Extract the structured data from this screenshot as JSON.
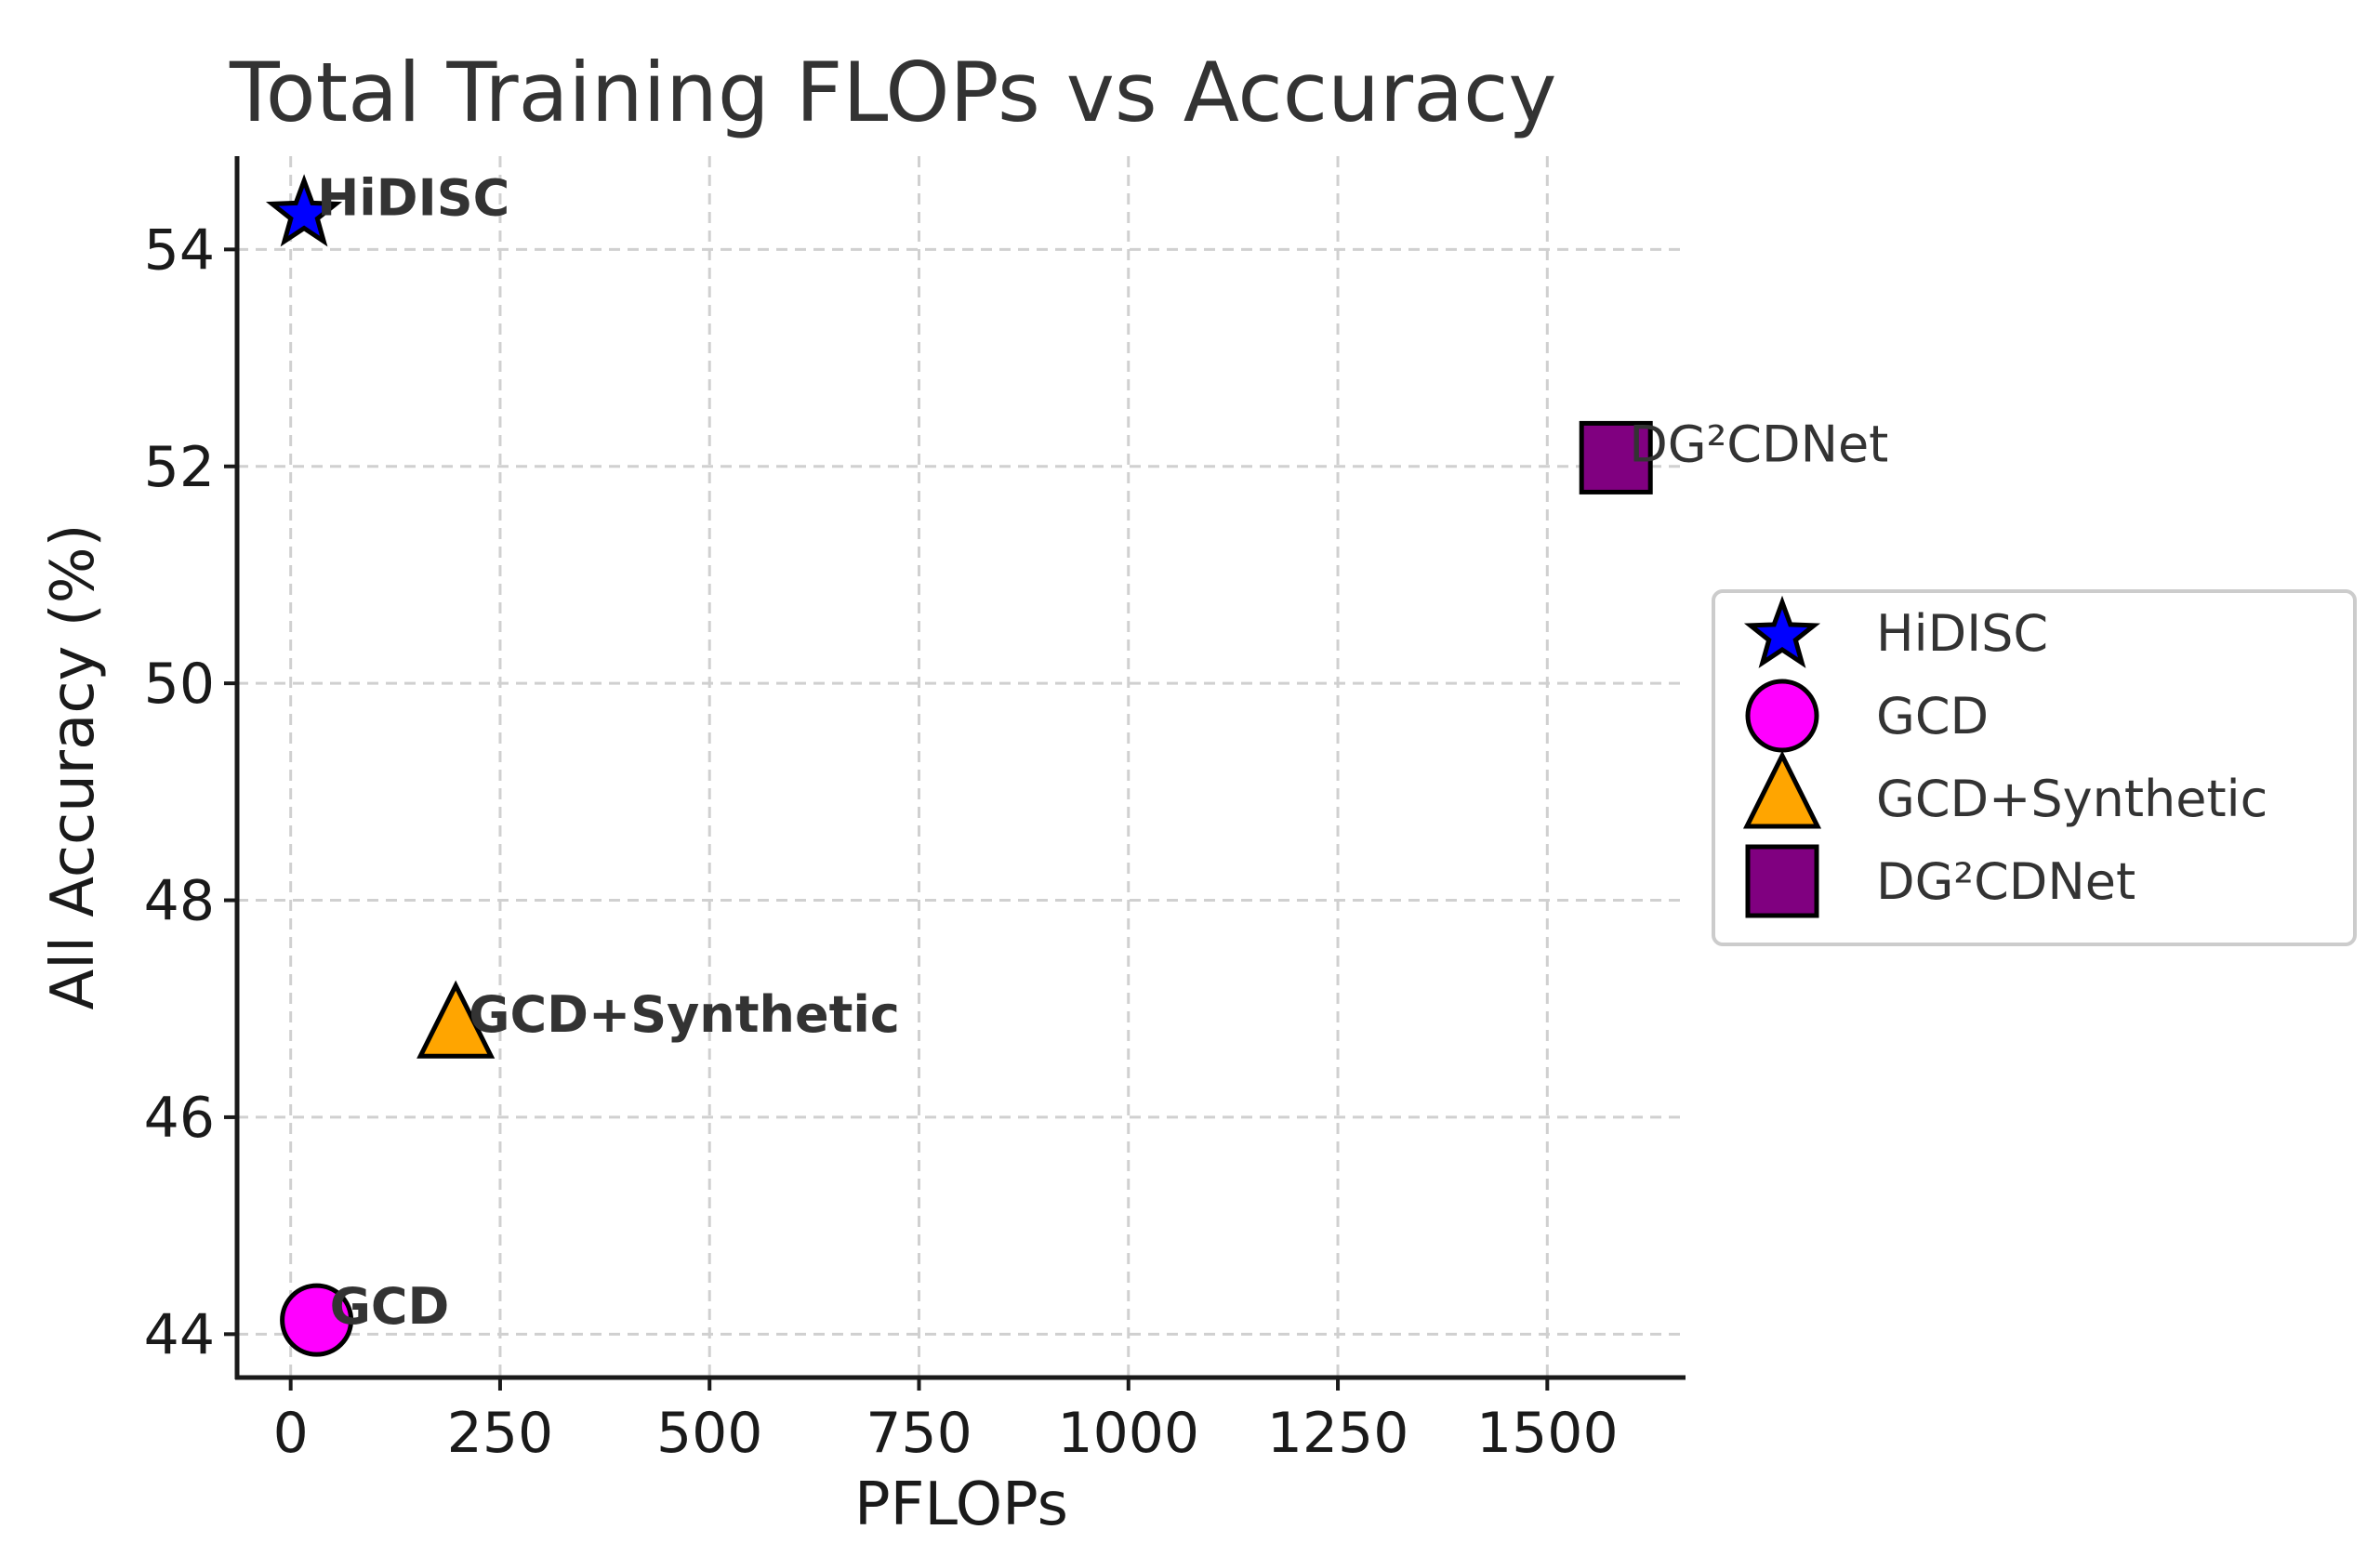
{
  "chart_data": {
    "type": "scatter",
    "title": "Total Training FLOPs vs Accuracy",
    "xlabel": "PFLOPs",
    "ylabel": "All Accuracy (%)",
    "xlim": [
      -64,
      1665
    ],
    "ylim": [
      43.6,
      54.86
    ],
    "xticks": [
      0,
      250,
      500,
      750,
      1000,
      1250,
      1500
    ],
    "yticks": [
      44,
      46,
      48,
      50,
      52,
      54
    ],
    "grid": true,
    "legend_position": "center-right-outside",
    "series": [
      {
        "name": "HiDISC",
        "x": 16,
        "y": 54.35,
        "marker": "star",
        "color": "#0000ff",
        "annotation": "HiDISC",
        "annotation_bold": true
      },
      {
        "name": "GCD",
        "x": 31,
        "y": 44.13,
        "marker": "circle",
        "color": "#ff00ff",
        "annotation": "GCD",
        "annotation_bold": true
      },
      {
        "name": "GCD+Synthetic",
        "x": 197,
        "y": 46.82,
        "marker": "triangle",
        "color": "#ffa500",
        "annotation": "GCD+Synthetic",
        "annotation_bold": true
      },
      {
        "name": "DG²CDNet",
        "x": 1582,
        "y": 52.08,
        "marker": "square",
        "color": "#800080",
        "annotation": "DG²CDNet",
        "annotation_bold": false
      }
    ]
  }
}
